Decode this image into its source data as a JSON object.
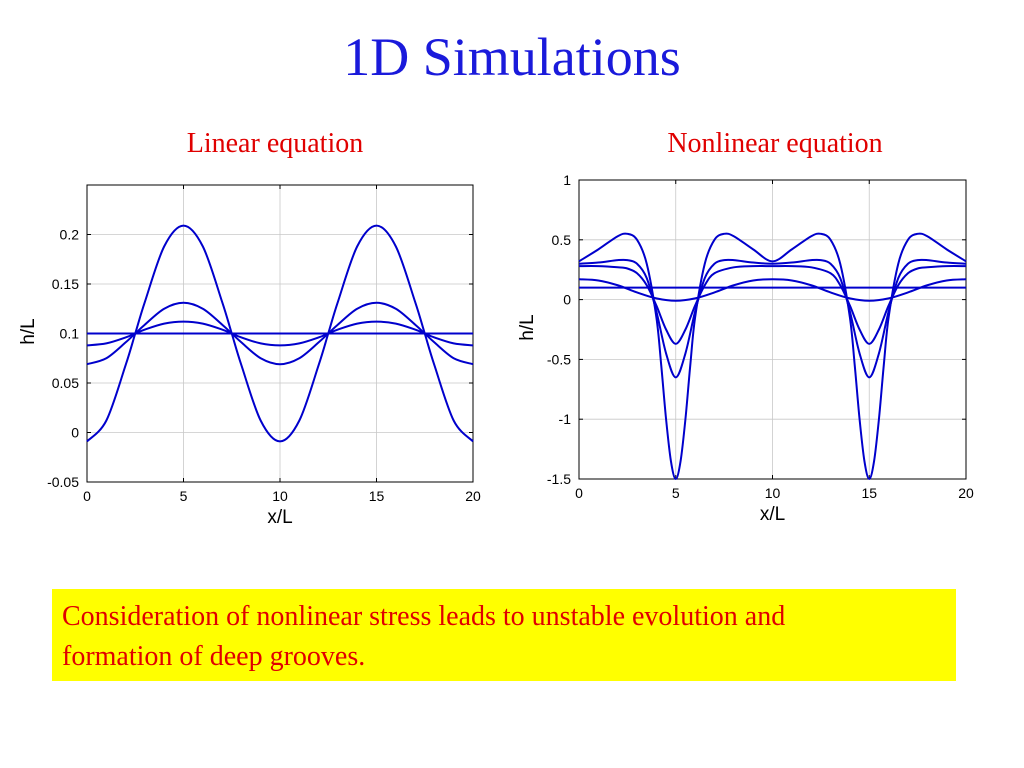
{
  "title": "1D Simulations",
  "chart_data": [
    {
      "type": "line",
      "title": "Linear equation",
      "xlabel": "x/L",
      "ylabel": "h/L",
      "xlim": [
        0,
        20
      ],
      "ylim": [
        -0.05,
        0.25
      ],
      "xticks": [
        "0",
        "5",
        "10",
        "15",
        "20"
      ],
      "yticks": [
        "-0.05",
        "0",
        "0.05",
        "0.1",
        "0.15",
        "0.2"
      ],
      "grid": true,
      "color": "#0000cc",
      "series": [
        {
          "x": [
            0,
            1,
            2,
            2.5,
            3,
            4,
            5,
            6,
            7,
            7.5,
            8,
            9,
            10,
            11,
            12,
            12.5,
            13,
            14,
            15,
            16,
            17,
            17.5,
            18,
            19,
            20
          ],
          "y": [
            0.1,
            0.1,
            0.1,
            0.1,
            0.1,
            0.1,
            0.1,
            0.1,
            0.1,
            0.1,
            0.1,
            0.1,
            0.1,
            0.1,
            0.1,
            0.1,
            0.1,
            0.1,
            0.1,
            0.1,
            0.1,
            0.1,
            0.1,
            0.1,
            0.1
          ]
        },
        {
          "x": [
            0,
            1,
            2,
            2.5,
            3,
            4,
            5,
            6,
            7,
            7.5,
            8,
            9,
            10,
            11,
            12,
            12.5,
            13,
            14,
            15,
            16,
            17,
            17.5,
            18,
            19,
            20
          ],
          "y": [
            0.088,
            0.09,
            0.096,
            0.1,
            0.104,
            0.11,
            0.112,
            0.11,
            0.104,
            0.1,
            0.096,
            0.09,
            0.088,
            0.09,
            0.096,
            0.1,
            0.104,
            0.11,
            0.112,
            0.11,
            0.104,
            0.1,
            0.096,
            0.09,
            0.088
          ]
        },
        {
          "x": [
            0,
            1,
            2,
            2.5,
            3,
            4,
            5,
            6,
            7,
            7.5,
            8,
            9,
            10,
            11,
            12,
            12.5,
            13,
            14,
            15,
            16,
            17,
            17.5,
            18,
            19,
            20
          ],
          "y": [
            0.069,
            0.075,
            0.091,
            0.1,
            0.109,
            0.125,
            0.131,
            0.125,
            0.109,
            0.1,
            0.091,
            0.075,
            0.069,
            0.075,
            0.091,
            0.1,
            0.109,
            0.125,
            0.131,
            0.125,
            0.109,
            0.1,
            0.091,
            0.075,
            0.069
          ]
        },
        {
          "x": [
            0,
            1,
            2,
            2.5,
            3,
            4,
            5,
            6,
            7,
            7.5,
            8,
            9,
            10,
            11,
            12,
            12.5,
            13,
            14,
            15,
            16,
            17,
            17.5,
            18,
            19,
            20
          ],
          "y": [
            -0.009,
            0.012,
            0.068,
            0.1,
            0.132,
            0.188,
            0.209,
            0.188,
            0.132,
            0.1,
            0.068,
            0.012,
            -0.009,
            0.012,
            0.068,
            0.1,
            0.132,
            0.188,
            0.209,
            0.188,
            0.132,
            0.1,
            0.068,
            0.012,
            -0.009
          ]
        }
      ]
    },
    {
      "type": "line",
      "title": "Nonlinear equation",
      "xlabel": "x/L",
      "ylabel": "h/L",
      "xlim": [
        0,
        20
      ],
      "ylim": [
        -1.5,
        1
      ],
      "xticks": [
        "0",
        "5",
        "10",
        "15",
        "20"
      ],
      "yticks": [
        "-1.5",
        "-1",
        "-0.5",
        "0",
        "0.5",
        "1"
      ],
      "grid": true,
      "color": "#0000cc",
      "series": [
        {
          "x": [
            0,
            2,
            4,
            6,
            8,
            10,
            12,
            14,
            16,
            18,
            20
          ],
          "y": [
            0.1,
            0.1,
            0.1,
            0.1,
            0.1,
            0.1,
            0.1,
            0.1,
            0.1,
            0.1,
            0.1
          ]
        },
        {
          "x": [
            0,
            1,
            2,
            3,
            4,
            5,
            6,
            7,
            8,
            9,
            10,
            11,
            12,
            13,
            14,
            15,
            16,
            17,
            18,
            19,
            20
          ],
          "y": [
            0.17,
            0.16,
            0.12,
            0.06,
            0.01,
            -0.01,
            0.01,
            0.06,
            0.12,
            0.16,
            0.17,
            0.16,
            0.12,
            0.06,
            0.01,
            -0.01,
            0.01,
            0.06,
            0.12,
            0.16,
            0.17
          ]
        },
        {
          "x": [
            0,
            1,
            2,
            2.5,
            3,
            3.5,
            4,
            4.5,
            5,
            5.5,
            6,
            6.5,
            7,
            8,
            9,
            10,
            11,
            12,
            13,
            13.5,
            14,
            14.5,
            15,
            15.5,
            16,
            16.5,
            17,
            17.5,
            18,
            19,
            20
          ],
          "y": [
            0.28,
            0.28,
            0.27,
            0.26,
            0.22,
            0.12,
            -0.05,
            -0.25,
            -0.37,
            -0.25,
            -0.05,
            0.12,
            0.22,
            0.27,
            0.28,
            0.28,
            0.28,
            0.27,
            0.22,
            0.12,
            -0.05,
            -0.25,
            -0.37,
            -0.25,
            -0.05,
            0.12,
            0.22,
            0.26,
            0.27,
            0.28,
            0.28
          ]
        },
        {
          "x": [
            0,
            1,
            2,
            2.5,
            3,
            3.5,
            4,
            4.5,
            5,
            5.5,
            6,
            6.5,
            7,
            7.5,
            8,
            9,
            10,
            11,
            12,
            12.5,
            13,
            13.5,
            14,
            14.5,
            15,
            15.5,
            16,
            16.5,
            17,
            17.5,
            18,
            19,
            20
          ],
          "y": [
            0.3,
            0.31,
            0.33,
            0.33,
            0.3,
            0.18,
            -0.1,
            -0.45,
            -0.65,
            -0.45,
            -0.1,
            0.18,
            0.3,
            0.33,
            0.33,
            0.31,
            0.3,
            0.31,
            0.33,
            0.33,
            0.3,
            0.18,
            -0.1,
            -0.45,
            -0.65,
            -0.45,
            -0.1,
            0.18,
            0.3,
            0.33,
            0.33,
            0.31,
            0.3
          ]
        },
        {
          "x": [
            0,
            1,
            2,
            2.5,
            3,
            3.5,
            4,
            4.25,
            4.5,
            4.75,
            5,
            5.25,
            5.5,
            5.75,
            6,
            6.5,
            7,
            7.5,
            8,
            9,
            10,
            11,
            12,
            12.5,
            13,
            13.5,
            14,
            14.25,
            14.5,
            14.75,
            15,
            15.25,
            15.5,
            15.75,
            16,
            16.5,
            17,
            17.5,
            18,
            19,
            20
          ],
          "y": [
            0.32,
            0.42,
            0.53,
            0.55,
            0.5,
            0.3,
            -0.15,
            -0.55,
            -1.0,
            -1.35,
            -1.5,
            -1.35,
            -1.0,
            -0.55,
            -0.15,
            0.3,
            0.5,
            0.55,
            0.53,
            0.42,
            0.32,
            0.42,
            0.53,
            0.55,
            0.5,
            0.3,
            -0.15,
            -0.55,
            -1.0,
            -1.35,
            -1.5,
            -1.35,
            -1.0,
            -0.55,
            -0.15,
            0.3,
            0.5,
            0.55,
            0.53,
            0.42,
            0.32
          ]
        }
      ]
    }
  ],
  "note": {
    "line1": "Consideration of nonlinear stress leads to unstable evolution and",
    "line2": "formation of deep grooves."
  }
}
